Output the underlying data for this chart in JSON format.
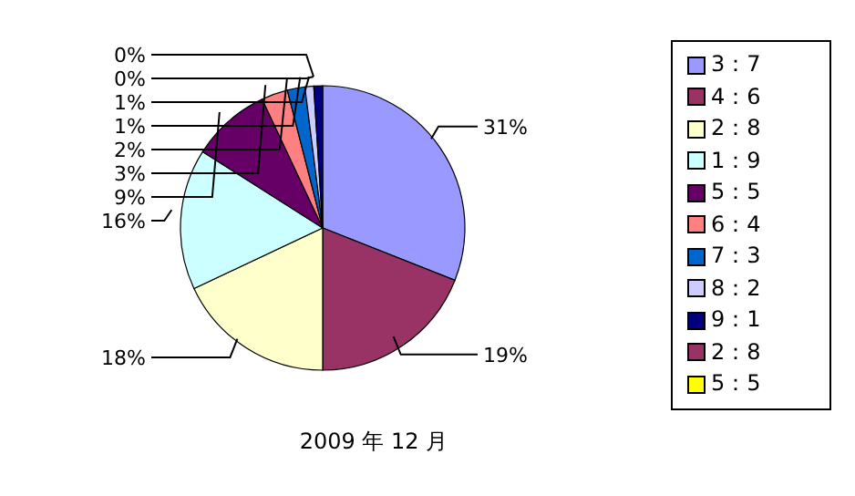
{
  "chart_data": {
    "type": "pie",
    "categories": [
      "3：7",
      "4：6",
      "2：8",
      "1：9",
      "5：5",
      "6：4",
      "7：3",
      "8：2",
      "9：1",
      "2：8",
      "5：5"
    ],
    "values": [
      31,
      19,
      18,
      16,
      9,
      3,
      2,
      1,
      1,
      0,
      0
    ],
    "value_labels": [
      "31%",
      "19%",
      "18%",
      "16%",
      "9%",
      "3%",
      "2%",
      "1%",
      "1%",
      "0%",
      "0%"
    ],
    "colors": [
      "#9999ff",
      "#993366",
      "#ffffcc",
      "#ccffff",
      "#660066",
      "#ff8080",
      "#0066cc",
      "#ccccff",
      "#000080",
      "#993366",
      "#ffff00"
    ],
    "legend": "right",
    "annotations": [
      "2009 年 12 月"
    ]
  }
}
